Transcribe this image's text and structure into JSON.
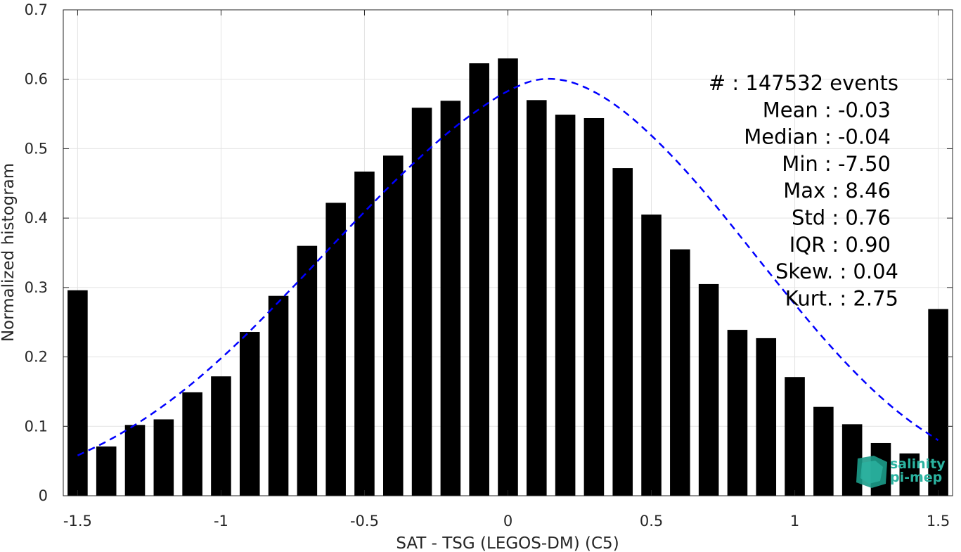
{
  "chart_data": {
    "type": "bar",
    "xlabel": "SAT - TSG (LEGOS-DM) (C5)",
    "ylabel": "Normalized histogram",
    "xlim": [
      -1.55,
      1.55
    ],
    "ylim": [
      0,
      0.7
    ],
    "xticks": [
      -1.5,
      -1,
      -0.5,
      0,
      0.5,
      1,
      1.5
    ],
    "xtick_labels": [
      "-1.5",
      "-1",
      "-0.5",
      "0",
      "0.5",
      "1",
      "1.5"
    ],
    "yticks": [
      0,
      0.1,
      0.2,
      0.3,
      0.4,
      0.5,
      0.6,
      0.7
    ],
    "ytick_labels": [
      "0",
      "0.1",
      "0.2",
      "0.3",
      "0.4",
      "0.5",
      "0.6",
      "0.7"
    ],
    "grid": true,
    "bar_color": "#000000",
    "bar_width": 0.07,
    "bars": {
      "x": [
        -1.5,
        -1.4,
        -1.3,
        -1.2,
        -1.1,
        -1.0,
        -0.9,
        -0.8,
        -0.7,
        -0.6,
        -0.5,
        -0.4,
        -0.3,
        -0.2,
        -0.1,
        0.0,
        0.1,
        0.2,
        0.3,
        0.4,
        0.5,
        0.6,
        0.7,
        0.8,
        0.9,
        1.0,
        1.1,
        1.2,
        1.3,
        1.4,
        1.5
      ],
      "values": [
        0.296,
        0.071,
        0.102,
        0.11,
        0.149,
        0.172,
        0.236,
        0.288,
        0.36,
        0.422,
        0.467,
        0.49,
        0.559,
        0.569,
        0.623,
        0.63,
        0.57,
        0.549,
        0.544,
        0.472,
        0.405,
        0.355,
        0.305,
        0.239,
        0.227,
        0.171,
        0.128,
        0.103,
        0.076,
        0.061,
        0.269
      ]
    },
    "fit_curve": {
      "style": "dashed",
      "color": "#0000ff",
      "x": [
        -1.5,
        -1.4,
        -1.3,
        -1.2,
        -1.1,
        -1.0,
        -0.9,
        -0.8,
        -0.7,
        -0.6,
        -0.5,
        -0.4,
        -0.3,
        -0.2,
        -0.1,
        0.0,
        0.1,
        0.2,
        0.3,
        0.4,
        0.5,
        0.6,
        0.7,
        0.8,
        0.9,
        1.0,
        1.1,
        1.2,
        1.3,
        1.4,
        1.5
      ],
      "y": [
        0.058,
        0.078,
        0.102,
        0.13,
        0.162,
        0.198,
        0.237,
        0.279,
        0.322,
        0.366,
        0.409,
        0.451,
        0.49,
        0.526,
        0.557,
        0.583,
        0.599,
        0.598,
        0.582,
        0.555,
        0.519,
        0.477,
        0.43,
        0.379,
        0.327,
        0.276,
        0.227,
        0.182,
        0.142,
        0.108,
        0.08
      ]
    },
    "annotations": [
      "#  : 147532 events",
      "Mean : -0.03",
      "Median : -0.04",
      "Min : -7.50",
      "Max : 8.46",
      "Std : 0.76",
      "IQR : 0.90",
      "Skew. : 0.04",
      "Kurt. : 2.75"
    ],
    "annotation_alignment": [
      "right",
      "right",
      "right",
      "right",
      "right",
      "right",
      "right",
      "right",
      "right"
    ]
  },
  "logo": {
    "line1": "salinity",
    "line2": "pi-mep",
    "color": "#2bb3a0"
  }
}
